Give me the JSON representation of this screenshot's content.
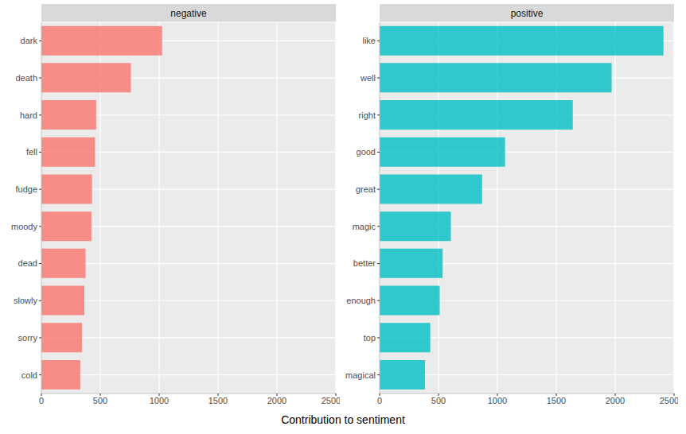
{
  "xlabel": "Contribution to sentiment",
  "chart_data": [
    {
      "type": "bar",
      "title": "negative",
      "orientation": "horizontal",
      "grid": true,
      "color": "#f8766d",
      "categories": [
        "dark",
        "death",
        "hard",
        "fell",
        "fudge",
        "moody",
        "dead",
        "slowly",
        "sorry",
        "cold"
      ],
      "values": [
        1025,
        760,
        465,
        455,
        430,
        425,
        375,
        365,
        345,
        330
      ],
      "xlim": [
        0,
        2500
      ],
      "xticks": [
        0,
        500,
        1000,
        1500,
        2000,
        2500
      ]
    },
    {
      "type": "bar",
      "title": "positive",
      "orientation": "horizontal",
      "grid": true,
      "color": "#00bfc4",
      "categories": [
        "like",
        "well",
        "right",
        "good",
        "great",
        "magic",
        "better",
        "enough",
        "top",
        "magical"
      ],
      "values": [
        2410,
        1970,
        1640,
        1065,
        870,
        605,
        535,
        510,
        430,
        385
      ],
      "xlim": [
        0,
        2500
      ],
      "xticks": [
        0,
        500,
        1000,
        1500,
        2000,
        2500
      ]
    }
  ]
}
